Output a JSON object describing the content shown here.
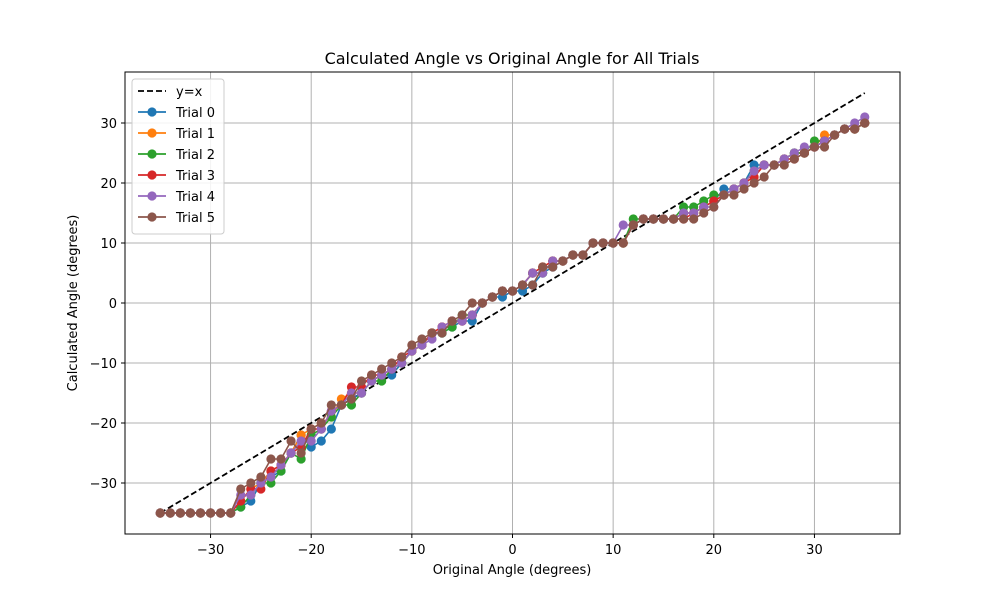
{
  "chart_data": {
    "type": "line",
    "title": "Calculated Angle vs Original Angle for All Trials",
    "xlabel": "Original Angle (degrees)",
    "ylabel": "Calculated Angle (degrees)",
    "xlim": [
      -38.5,
      38.5
    ],
    "ylim": [
      -38.5,
      38.5
    ],
    "xticks": [
      -30,
      -20,
      -10,
      0,
      10,
      20,
      30
    ],
    "yticks": [
      -30,
      -20,
      -10,
      0,
      10,
      20,
      30
    ],
    "xtick_labels": [
      "−30",
      "−20",
      "−10",
      "0",
      "10",
      "20",
      "30"
    ],
    "ytick_labels": [
      "−30",
      "−20",
      "−10",
      "0",
      "10",
      "20",
      "30"
    ],
    "grid": true,
    "legend": {
      "position": "upper-left"
    },
    "x": [
      -35,
      -34,
      -33,
      -32,
      -31,
      -30,
      -29,
      -28,
      -27,
      -26,
      -25,
      -24,
      -23,
      -22,
      -21,
      -20,
      -19,
      -18,
      -17,
      -16,
      -15,
      -14,
      -13,
      -12,
      -11,
      -10,
      -9,
      -8,
      -7,
      -6,
      -5,
      -4,
      -3,
      -2,
      -1,
      0,
      1,
      2,
      3,
      4,
      5,
      6,
      7,
      8,
      9,
      10,
      11,
      12,
      13,
      14,
      15,
      16,
      17,
      18,
      19,
      20,
      21,
      22,
      23,
      24,
      25,
      26,
      27,
      28,
      29,
      30,
      31,
      32,
      33,
      34,
      35
    ],
    "reference_line": {
      "name": "y=x",
      "x": [
        -35,
        35
      ],
      "y": [
        -35,
        35
      ],
      "color": "#000000",
      "dashed": true
    },
    "series": [
      {
        "name": "Trial 0",
        "color": "#1f77b4",
        "values": [
          -35,
          -35,
          -35,
          -35,
          -35,
          -35,
          -35,
          -35,
          -34,
          -33,
          -30,
          -29,
          -28,
          -25,
          -22,
          -24,
          -23,
          -21,
          -17,
          -16,
          -15,
          -13,
          -12,
          -12,
          -10,
          -8,
          -7,
          -5,
          -5,
          -4,
          -3,
          -3,
          0,
          1,
          1,
          2,
          2,
          3,
          5,
          6,
          7,
          8,
          8,
          10,
          10,
          10,
          10,
          13,
          14,
          14,
          14,
          14,
          15,
          15,
          16,
          17,
          19,
          19,
          20,
          23,
          23,
          23,
          24,
          25,
          25,
          26,
          27,
          28,
          29,
          29,
          30
        ]
      },
      {
        "name": "Trial 1",
        "color": "#ff7f0e",
        "values": [
          -35,
          -35,
          -35,
          -35,
          -35,
          -35,
          -35,
          -35,
          -33,
          -31,
          -30,
          -28,
          -27,
          -25,
          -22,
          -21,
          -20,
          -19,
          -16,
          -15,
          -15,
          -13,
          -12,
          -11,
          -10,
          -8,
          -7,
          -5,
          -4,
          -3,
          -3,
          -2,
          0,
          1,
          2,
          2,
          3,
          5,
          6,
          7,
          7,
          8,
          8,
          10,
          10,
          10,
          10,
          13,
          14,
          14,
          14,
          14,
          15,
          15,
          16,
          17,
          18,
          19,
          20,
          21,
          23,
          23,
          24,
          25,
          25,
          26,
          28,
          28,
          29,
          29,
          30
        ]
      },
      {
        "name": "Trial 2",
        "color": "#2ca02c",
        "values": [
          -35,
          -35,
          -35,
          -35,
          -35,
          -35,
          -35,
          -35,
          -34,
          -32,
          -30,
          -30,
          -28,
          -25,
          -26,
          -22,
          -21,
          -19,
          -17,
          -17,
          -15,
          -13,
          -13,
          -11,
          -10,
          -8,
          -7,
          -5,
          -5,
          -4,
          -2,
          -2,
          0,
          1,
          2,
          2,
          3,
          5,
          5,
          7,
          7,
          8,
          8,
          10,
          10,
          10,
          10,
          14,
          14,
          14,
          14,
          14,
          16,
          16,
          17,
          18,
          18,
          19,
          20,
          22,
          23,
          23,
          24,
          25,
          25,
          27,
          27,
          28,
          29,
          29,
          30
        ]
      },
      {
        "name": "Trial 3",
        "color": "#d62728",
        "values": [
          -35,
          -35,
          -35,
          -35,
          -35,
          -35,
          -35,
          -35,
          -33,
          -31,
          -31,
          -28,
          -27,
          -25,
          -24,
          -21,
          -21,
          -18,
          -17,
          -14,
          -14,
          -12,
          -12,
          -11,
          -9,
          -8,
          -7,
          -5,
          -4,
          -3,
          -3,
          -2,
          0,
          1,
          2,
          2,
          3,
          5,
          6,
          7,
          7,
          8,
          8,
          10,
          10,
          10,
          10,
          13,
          14,
          14,
          14,
          14,
          14,
          15,
          16,
          17,
          18,
          19,
          20,
          21,
          23,
          23,
          24,
          24,
          25,
          26,
          27,
          28,
          29,
          29,
          30
        ]
      },
      {
        "name": "Trial 4",
        "color": "#9467bd",
        "values": [
          -35,
          -35,
          -35,
          -35,
          -35,
          -35,
          -35,
          -35,
          -32,
          -32,
          -30,
          -29,
          -27,
          -25,
          -23,
          -23,
          -21,
          -18,
          -17,
          -15,
          -15,
          -13,
          -12,
          -11,
          -10,
          -8,
          -7,
          -6,
          -4,
          -3,
          -3,
          -2,
          0,
          1,
          2,
          2,
          3,
          5,
          5,
          7,
          7,
          8,
          8,
          10,
          10,
          10,
          13,
          13,
          14,
          14,
          14,
          14,
          15,
          15,
          16,
          16,
          18,
          19,
          20,
          22,
          23,
          23,
          24,
          25,
          26,
          26,
          27,
          28,
          29,
          30,
          31
        ]
      },
      {
        "name": "Trial 5",
        "color": "#8c564b",
        "values": [
          -35,
          -35,
          -35,
          -35,
          -35,
          -35,
          -35,
          -35,
          -31,
          -30,
          -29,
          -26,
          -26,
          -23,
          -25,
          -21,
          -20,
          -17,
          -17,
          -16,
          -13,
          -12,
          -11,
          -10,
          -9,
          -7,
          -6,
          -5,
          -5,
          -3,
          -2,
          0,
          0,
          1,
          2,
          2,
          3,
          3,
          6,
          6,
          7,
          8,
          8,
          10,
          10,
          10,
          10,
          13,
          14,
          14,
          14,
          14,
          14,
          14,
          15,
          16,
          18,
          18,
          19,
          20,
          21,
          23,
          23,
          24,
          25,
          26,
          26,
          28,
          29,
          29,
          30
        ]
      }
    ]
  }
}
